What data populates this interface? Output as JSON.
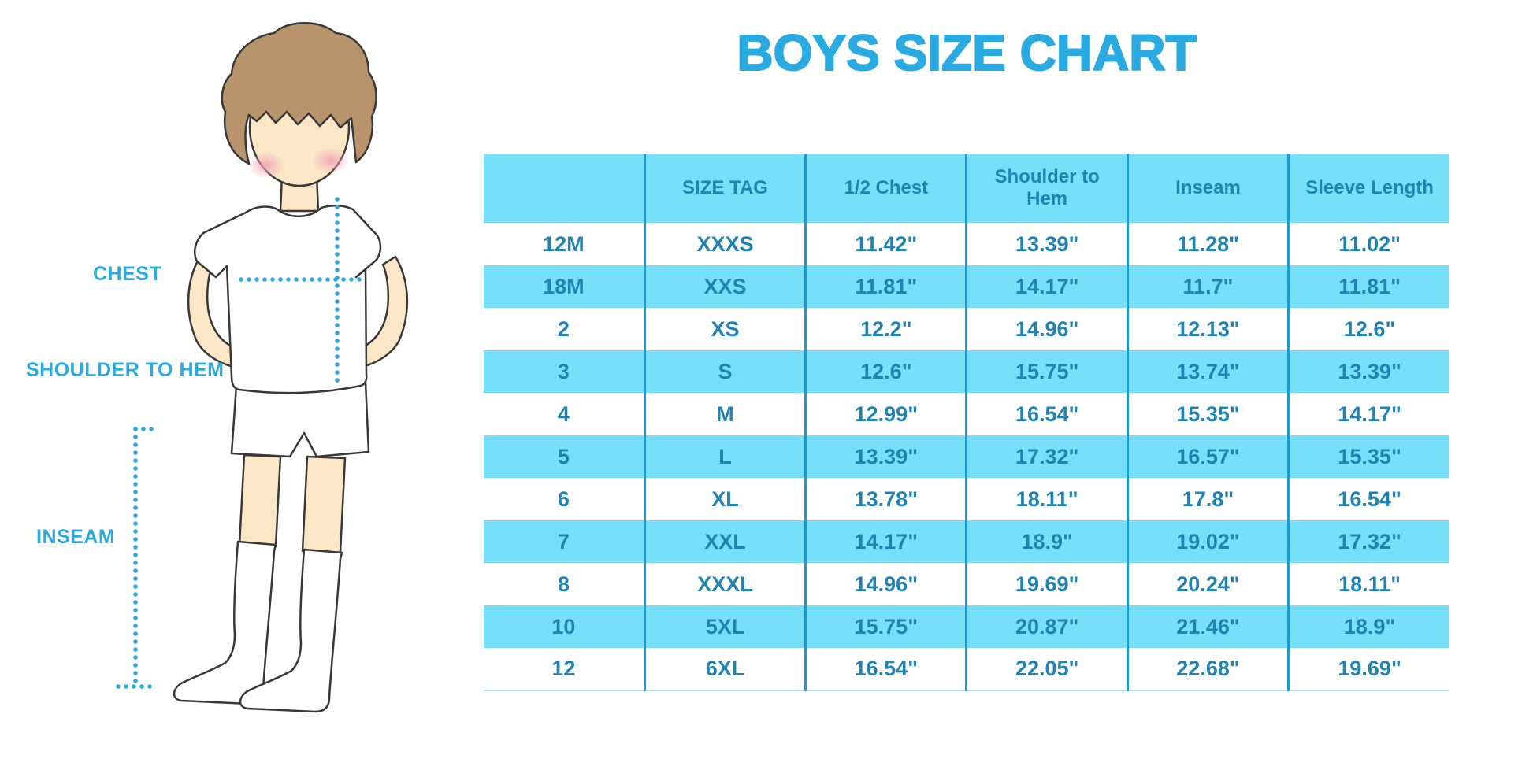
{
  "title": "BOYS SIZE CHART",
  "figure_labels": {
    "chest": "CHEST",
    "shoulder_to_hem": "SHOULDER TO HEM",
    "inseam": "INSEAM"
  },
  "colors": {
    "accent_blue": "#29ABE2",
    "stripe_cyan": "#76E0FA",
    "table_text": "#2083B1",
    "divider": "#1B9AD3",
    "outline": "#383838",
    "hair": "#B8946C",
    "skin": "#FBE7C6"
  },
  "chart_data": {
    "type": "table",
    "title": "BOYS SIZE CHART",
    "columns": [
      "",
      "SIZE TAG",
      "1/2 Chest",
      "Shoulder to Hem",
      "Inseam",
      "Sleeve Length"
    ],
    "rows": [
      [
        "12M",
        "XXXS",
        "11.42\"",
        "13.39\"",
        "11.28\"",
        "11.02\""
      ],
      [
        "18M",
        "XXS",
        "11.81\"",
        "14.17\"",
        "11.7\"",
        "11.81\""
      ],
      [
        "2",
        "XS",
        "12.2\"",
        "14.96\"",
        "12.13\"",
        "12.6\""
      ],
      [
        "3",
        "S",
        "12.6\"",
        "15.75\"",
        "13.74\"",
        "13.39\""
      ],
      [
        "4",
        "M",
        "12.99\"",
        "16.54\"",
        "15.35\"",
        "14.17\""
      ],
      [
        "5",
        "L",
        "13.39\"",
        "17.32\"",
        "16.57\"",
        "15.35\""
      ],
      [
        "6",
        "XL",
        "13.78\"",
        "18.11\"",
        "17.8\"",
        "16.54\""
      ],
      [
        "7",
        "XXL",
        "14.17\"",
        "18.9\"",
        "19.02\"",
        "17.32\""
      ],
      [
        "8",
        "XXXL",
        "14.96\"",
        "19.69\"",
        "20.24\"",
        "18.11\""
      ],
      [
        "10",
        "5XL",
        "15.75\"",
        "20.87\"",
        "21.46\"",
        "18.9\""
      ],
      [
        "12",
        "6XL",
        "16.54\"",
        "22.05\"",
        "22.68\"",
        "19.69\""
      ]
    ]
  }
}
